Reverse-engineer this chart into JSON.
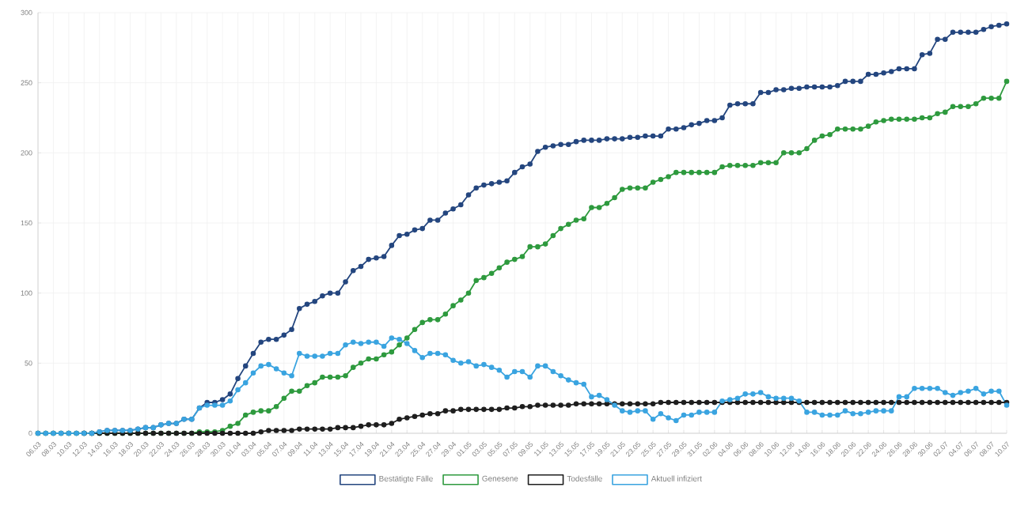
{
  "chart_data": {
    "type": "line",
    "categories": [
      "06.03",
      null,
      "08.03",
      null,
      "10.03",
      null,
      "12.03",
      null,
      "14.03",
      null,
      "16.03",
      null,
      "18.03",
      null,
      "20.03",
      null,
      "22.03",
      null,
      "24.03",
      null,
      "26.03",
      null,
      "28.03",
      null,
      "30.03",
      null,
      "01.04",
      null,
      "03.04",
      null,
      "05.04",
      null,
      "07.04",
      null,
      "09.04",
      null,
      "11.04",
      null,
      "13.04",
      null,
      "15.04",
      null,
      "17.04",
      null,
      "19.04",
      null,
      "21.04",
      null,
      "23.04",
      null,
      "25.04",
      null,
      "27.04",
      null,
      "29.04",
      null,
      "01.05",
      null,
      "03.05",
      null,
      "05.05",
      null,
      "07.05",
      null,
      "09.05",
      null,
      "11.05",
      null,
      "13.05",
      null,
      "15.05",
      null,
      "17.05",
      null,
      "19.05",
      null,
      "21.05",
      null,
      "23.05",
      null,
      "25.05",
      null,
      "27.05",
      null,
      "29.05",
      null,
      "31.05",
      null,
      "02.06",
      null,
      "04.06",
      null,
      "06.06",
      null,
      "08.06",
      null,
      "10.06",
      null,
      "12.06",
      null,
      "14.06",
      null,
      "16.06",
      null,
      "18.06",
      null,
      "20.06",
      null,
      "22.06",
      null,
      "24.06",
      null,
      "26.06",
      null,
      "28.06",
      null,
      "30.06",
      null,
      "02.07",
      null,
      "04.07",
      null,
      "06.07",
      null,
      "08.07",
      null,
      "10.07"
    ],
    "series": [
      {
        "name": "Bestätigte Fälle",
        "color": "#24467f",
        "values": [
          0,
          0,
          0,
          0,
          0,
          0,
          0,
          0,
          1,
          2,
          2,
          2,
          2,
          3,
          4,
          4,
          6,
          7,
          7,
          10,
          10,
          18,
          22,
          22,
          24,
          28,
          39,
          48,
          57,
          65,
          67,
          67,
          70,
          74,
          89,
          92,
          94,
          98,
          100,
          100,
          108,
          116,
          119,
          124,
          125,
          126,
          134,
          141,
          142,
          145,
          146,
          152,
          152,
          157,
          160,
          163,
          170,
          175,
          177,
          178,
          179,
          180,
          186,
          190,
          192,
          201,
          204,
          205,
          206,
          206,
          208,
          209,
          209,
          209,
          210,
          210,
          210,
          211,
          211,
          212,
          212,
          212,
          217,
          217,
          218,
          220,
          221,
          223,
          223,
          225,
          234,
          235,
          235,
          235,
          243,
          243,
          245,
          245,
          246,
          246,
          247,
          247,
          247,
          247,
          248,
          251,
          251,
          251,
          256,
          256,
          257,
          258,
          260,
          260,
          260,
          270,
          271,
          281,
          281,
          286,
          286,
          286,
          286,
          288,
          290,
          291,
          292
        ]
      },
      {
        "name": "Genesene",
        "color": "#2e9a3e",
        "values": [
          0,
          0,
          0,
          0,
          0,
          0,
          0,
          0,
          0,
          0,
          0,
          0,
          0,
          0,
          0,
          0,
          0,
          0,
          0,
          0,
          0,
          1,
          1,
          1,
          2,
          5,
          7,
          13,
          15,
          16,
          16,
          19,
          25,
          30,
          30,
          34,
          36,
          40,
          40,
          40,
          41,
          47,
          50,
          53,
          53,
          56,
          58,
          63,
          68,
          74,
          79,
          81,
          81,
          85,
          91,
          95,
          100,
          109,
          111,
          114,
          118,
          122,
          124,
          126,
          133,
          133,
          135,
          141,
          146,
          149,
          152,
          153,
          161,
          161,
          164,
          168,
          174,
          175,
          175,
          175,
          179,
          181,
          183,
          186,
          186,
          186,
          186,
          186,
          186,
          190,
          191,
          191,
          191,
          191,
          193,
          193,
          193,
          200,
          200,
          200,
          203,
          209,
          212,
          213,
          217,
          217,
          217,
          217,
          219,
          222,
          223,
          224,
          224,
          224,
          224,
          225,
          225,
          228,
          229,
          233,
          233,
          233,
          235,
          239,
          239,
          239,
          251
        ]
      },
      {
        "name": "Todesfälle",
        "color": "#1e1e1e",
        "values": [
          null,
          null,
          null,
          null,
          null,
          null,
          0,
          0,
          0,
          0,
          0,
          0,
          0,
          0,
          0,
          0,
          0,
          0,
          0,
          0,
          0,
          0,
          0,
          0,
          0,
          0,
          0,
          0,
          0,
          1,
          2,
          2,
          2,
          2,
          3,
          3,
          3,
          3,
          3,
          4,
          4,
          4,
          5,
          6,
          6,
          6,
          7,
          10,
          11,
          12,
          13,
          14,
          14,
          16,
          16,
          17,
          17,
          17,
          17,
          17,
          17,
          18,
          18,
          19,
          19,
          20,
          20,
          20,
          20,
          20,
          21,
          21,
          21,
          21,
          21,
          21,
          21,
          21,
          21,
          21,
          21,
          22,
          22,
          22,
          22,
          22,
          22,
          22,
          22,
          22,
          22,
          22,
          22,
          22,
          22,
          22,
          22,
          22,
          22,
          22,
          22,
          22,
          22,
          22,
          22,
          22,
          22,
          22,
          22,
          22,
          22,
          22,
          22,
          22,
          22,
          22,
          22,
          22,
          22,
          22,
          22,
          22,
          22,
          22,
          22,
          22,
          22
        ]
      },
      {
        "name": "Aktuell infiziert",
        "color": "#3aa4e0",
        "values": [
          0,
          0,
          0,
          0,
          0,
          0,
          0,
          0,
          1,
          2,
          2,
          2,
          2,
          3,
          4,
          4,
          6,
          7,
          7,
          10,
          10,
          18,
          20,
          20,
          20,
          23,
          31,
          36,
          43,
          48,
          49,
          46,
          43,
          41,
          57,
          55,
          55,
          55,
          57,
          57,
          63,
          65,
          64,
          65,
          65,
          62,
          68,
          67,
          64,
          59,
          54,
          57,
          57,
          56,
          52,
          50,
          51,
          48,
          49,
          47,
          45,
          40,
          44,
          44,
          40,
          48,
          48,
          44,
          41,
          38,
          36,
          35,
          26,
          27,
          24,
          20,
          16,
          15,
          16,
          16,
          10,
          14,
          11,
          9,
          13,
          13,
          15,
          15,
          15,
          23,
          24,
          25,
          28,
          28,
          29,
          26,
          25,
          25,
          25,
          23,
          15,
          15,
          13,
          13,
          13,
          16,
          14,
          14,
          15,
          16,
          16,
          16,
          26,
          26,
          32,
          32,
          32,
          32,
          29,
          27,
          29,
          30,
          32,
          28,
          30,
          30,
          20
        ]
      }
    ],
    "ylim": [
      0,
      300
    ],
    "yticks": [
      0,
      50,
      100,
      150,
      200,
      250,
      300
    ],
    "grid": true,
    "legend": "bottom",
    "marker": "circle"
  }
}
